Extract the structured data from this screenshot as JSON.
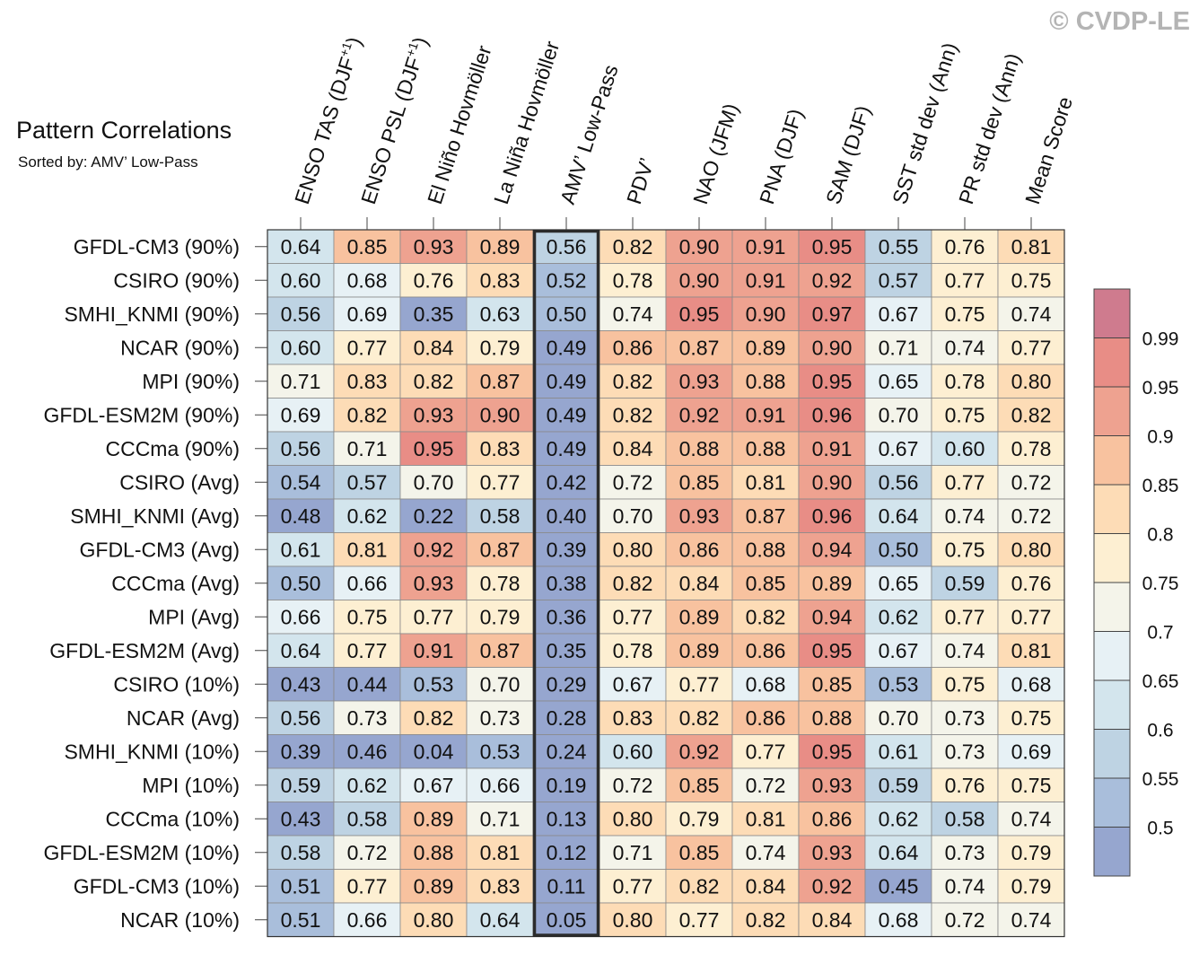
{
  "chart_data": {
    "type": "heatmap",
    "title": "Pattern Correlations",
    "subtitle": "Sorted by: AMV’ Low-Pass",
    "watermark": "© CVDP-LE",
    "columns": [
      {
        "pre": "ENSO TAS (DJF",
        "sup": "+1",
        "post": ")"
      },
      {
        "pre": "ENSO PSL (DJF",
        "sup": "+1",
        "post": ")"
      },
      {
        "pre": "El Niño Hovmöller",
        "sup": "",
        "post": ""
      },
      {
        "pre": "La Niña Hovmöller",
        "sup": "",
        "post": ""
      },
      {
        "pre": "AMV’ Low-Pass",
        "sup": "",
        "post": ""
      },
      {
        "pre": "PDV’",
        "sup": "",
        "post": ""
      },
      {
        "pre": "NAO (JFM)",
        "sup": "",
        "post": ""
      },
      {
        "pre": "PNA (DJF)",
        "sup": "",
        "post": ""
      },
      {
        "pre": "SAM (DJF)",
        "sup": "",
        "post": ""
      },
      {
        "pre": "SST std dev (Ann)",
        "sup": "",
        "post": ""
      },
      {
        "pre": "PR std dev (Ann)",
        "sup": "",
        "post": ""
      },
      {
        "pre": "Mean Score",
        "sup": "",
        "post": ""
      }
    ],
    "highlight_column": 4,
    "rows": [
      "GFDL-CM3 (90%)",
      "CSIRO (90%)",
      "SMHI_KNMI (90%)",
      "NCAR (90%)",
      "MPI (90%)",
      "GFDL-ESM2M (90%)",
      "CCCma (90%)",
      "CSIRO (Avg)",
      "SMHI_KNMI (Avg)",
      "GFDL-CM3 (Avg)",
      "CCCma (Avg)",
      "MPI (Avg)",
      "GFDL-ESM2M (Avg)",
      "CSIRO (10%)",
      "NCAR (Avg)",
      "SMHI_KNMI (10%)",
      "MPI (10%)",
      "CCCma (10%)",
      "GFDL-ESM2M (10%)",
      "GFDL-CM3 (10%)",
      "NCAR (10%)"
    ],
    "values": [
      [
        "0.64",
        "0.85",
        "0.93",
        "0.89",
        "0.56",
        "0.82",
        "0.90",
        "0.91",
        "0.95",
        "0.55",
        "0.76",
        "0.81"
      ],
      [
        "0.60",
        "0.68",
        "0.76",
        "0.83",
        "0.52",
        "0.78",
        "0.90",
        "0.91",
        "0.92",
        "0.57",
        "0.77",
        "0.75"
      ],
      [
        "0.56",
        "0.69",
        "0.35",
        "0.63",
        "0.50",
        "0.74",
        "0.95",
        "0.90",
        "0.97",
        "0.67",
        "0.75",
        "0.74"
      ],
      [
        "0.60",
        "0.77",
        "0.84",
        "0.79",
        "0.49",
        "0.86",
        "0.87",
        "0.89",
        "0.90",
        "0.71",
        "0.74",
        "0.77"
      ],
      [
        "0.71",
        "0.83",
        "0.82",
        "0.87",
        "0.49",
        "0.82",
        "0.93",
        "0.88",
        "0.95",
        "0.65",
        "0.78",
        "0.80"
      ],
      [
        "0.69",
        "0.82",
        "0.93",
        "0.90",
        "0.49",
        "0.82",
        "0.92",
        "0.91",
        "0.96",
        "0.70",
        "0.75",
        "0.82"
      ],
      [
        "0.56",
        "0.71",
        "0.95",
        "0.83",
        "0.49",
        "0.84",
        "0.88",
        "0.88",
        "0.91",
        "0.67",
        "0.60",
        "0.78"
      ],
      [
        "0.54",
        "0.57",
        "0.70",
        "0.77",
        "0.42",
        "0.72",
        "0.85",
        "0.81",
        "0.90",
        "0.56",
        "0.77",
        "0.72"
      ],
      [
        "0.48",
        "0.62",
        "0.22",
        "0.58",
        "0.40",
        "0.70",
        "0.93",
        "0.87",
        "0.96",
        "0.64",
        "0.74",
        "0.72"
      ],
      [
        "0.61",
        "0.81",
        "0.92",
        "0.87",
        "0.39",
        "0.80",
        "0.86",
        "0.88",
        "0.94",
        "0.50",
        "0.75",
        "0.80"
      ],
      [
        "0.50",
        "0.66",
        "0.93",
        "0.78",
        "0.38",
        "0.82",
        "0.84",
        "0.85",
        "0.89",
        "0.65",
        "0.59",
        "0.76"
      ],
      [
        "0.66",
        "0.75",
        "0.77",
        "0.79",
        "0.36",
        "0.77",
        "0.89",
        "0.82",
        "0.94",
        "0.62",
        "0.77",
        "0.77"
      ],
      [
        "0.64",
        "0.77",
        "0.91",
        "0.87",
        "0.35",
        "0.78",
        "0.89",
        "0.86",
        "0.95",
        "0.67",
        "0.74",
        "0.81"
      ],
      [
        "0.43",
        "0.44",
        "0.53",
        "0.70",
        "0.29",
        "0.67",
        "0.77",
        "0.68",
        "0.85",
        "0.53",
        "0.75",
        "0.68"
      ],
      [
        "0.56",
        "0.73",
        "0.82",
        "0.73",
        "0.28",
        "0.83",
        "0.82",
        "0.86",
        "0.88",
        "0.70",
        "0.73",
        "0.75"
      ],
      [
        "0.39",
        "0.46",
        "0.04",
        "0.53",
        "0.24",
        "0.60",
        "0.92",
        "0.77",
        "0.95",
        "0.61",
        "0.73",
        "0.69"
      ],
      [
        "0.59",
        "0.62",
        "0.67",
        "0.66",
        "0.19",
        "0.72",
        "0.85",
        "0.72",
        "0.93",
        "0.59",
        "0.76",
        "0.75"
      ],
      [
        "0.43",
        "0.58",
        "0.89",
        "0.71",
        "0.13",
        "0.80",
        "0.79",
        "0.81",
        "0.86",
        "0.62",
        "0.58",
        "0.74"
      ],
      [
        "0.58",
        "0.72",
        "0.88",
        "0.81",
        "0.12",
        "0.71",
        "0.85",
        "0.74",
        "0.93",
        "0.64",
        "0.73",
        "0.79"
      ],
      [
        "0.51",
        "0.77",
        "0.89",
        "0.83",
        "0.11",
        "0.77",
        "0.82",
        "0.84",
        "0.92",
        "0.45",
        "0.74",
        "0.79"
      ],
      [
        "0.51",
        "0.66",
        "0.80",
        "0.64",
        "0.05",
        "0.80",
        "0.77",
        "0.82",
        "0.84",
        "0.68",
        "0.72",
        "0.74"
      ]
    ],
    "colorbar": {
      "tick_labels": [
        "0.5",
        "0.55",
        "0.6",
        "0.65",
        "0.7",
        "0.75",
        "0.8",
        "0.85",
        "0.9",
        "0.95",
        "0.99"
      ],
      "thresholds": [
        0.5,
        0.55,
        0.6,
        0.65,
        0.7,
        0.75,
        0.8,
        0.85,
        0.9,
        0.95,
        0.99
      ],
      "colors": [
        "#96a6cf",
        "#a9bedb",
        "#bed3e3",
        "#d3e5ed",
        "#e7f1f5",
        "#f4f4ea",
        "#fdefd2",
        "#fddcb6",
        "#f8c29f",
        "#eea290",
        "#e88d86",
        "#cf7b8e"
      ]
    }
  }
}
